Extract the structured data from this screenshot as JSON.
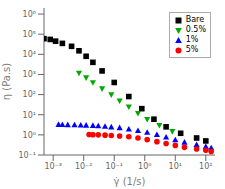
{
  "chart_data": {
    "type": "scatter",
    "xlabel": "γ̇ (1/s)",
    "ylabel": "η (Pa.s)",
    "log": true,
    "grid": false,
    "legend": "upper right",
    "xlim": [
      0.0005,
      200.0
    ],
    "ylim": [
      0.1,
      2000000.0
    ],
    "xticks": [
      {
        "value": 0.001,
        "label": "10⁻³"
      },
      {
        "value": 0.01,
        "label": "10⁻²"
      },
      {
        "value": 0.1,
        "label": "10⁻¹"
      },
      {
        "value": 1,
        "label": "10⁰"
      },
      {
        "value": 10,
        "label": "10¹"
      },
      {
        "value": 100,
        "label": "10²"
      }
    ],
    "yticks": [
      {
        "value": 0.1,
        "label": "10⁻¹"
      },
      {
        "value": 1,
        "label": "10⁰"
      },
      {
        "value": 10,
        "label": "10¹"
      },
      {
        "value": 100,
        "label": "10²"
      },
      {
        "value": 1000,
        "label": "10³"
      },
      {
        "value": 10000,
        "label": "10⁴"
      },
      {
        "value": 100000,
        "label": "10⁵"
      },
      {
        "value": 1000000,
        "label": "10⁶"
      }
    ],
    "series": [
      {
        "name": "Bare",
        "color": "black",
        "marker": "square",
        "x": [
          0.0005,
          0.0008,
          0.0012,
          0.002,
          0.004,
          0.007,
          0.012,
          0.02,
          0.04,
          0.1,
          0.3,
          0.8,
          2,
          5,
          15,
          50,
          100
        ],
        "values": [
          60000.0,
          55000.0,
          45000.0,
          35000.0,
          25000.0,
          15000.0,
          8000,
          4000,
          1500,
          400,
          80,
          20,
          6,
          2.5,
          1.2,
          0.7,
          0.5
        ]
      },
      {
        "name": "0.5%",
        "color": "#00aa00",
        "marker": "triangle-down",
        "x": [
          0.007,
          0.012,
          0.02,
          0.04,
          0.08,
          0.15,
          0.3,
          0.6,
          1.2,
          3,
          8
        ],
        "values": [
          1200,
          700,
          400,
          200,
          100,
          50,
          25,
          12,
          6,
          3,
          1.5
        ]
      },
      {
        "name": "1%",
        "color": "blue",
        "marker": "triangle",
        "x": [
          0.0015,
          0.002,
          0.003,
          0.005,
          0.008,
          0.012,
          0.02,
          0.03,
          0.05,
          0.08,
          0.15,
          0.3,
          0.6,
          1.2,
          2.5,
          5,
          10,
          20,
          50,
          100,
          150
        ],
        "values": [
          3.2,
          3.15,
          3.1,
          3.05,
          3.0,
          2.95,
          2.85,
          2.75,
          2.6,
          2.4,
          2.2,
          1.9,
          1.6,
          1.3,
          1.0,
          0.75,
          0.55,
          0.42,
          0.32,
          0.26,
          0.22
        ]
      },
      {
        "name": "5%",
        "color": "red",
        "marker": "circle",
        "x": [
          0.015,
          0.02,
          0.03,
          0.05,
          0.08,
          0.15,
          0.3,
          0.6,
          1.2,
          2.5,
          5,
          10,
          20,
          50,
          100,
          150
        ],
        "values": [
          1.05,
          1.02,
          1.0,
          0.97,
          0.93,
          0.88,
          0.8,
          0.7,
          0.58,
          0.46,
          0.37,
          0.3,
          0.24,
          0.2,
          0.17,
          0.15
        ]
      }
    ]
  }
}
